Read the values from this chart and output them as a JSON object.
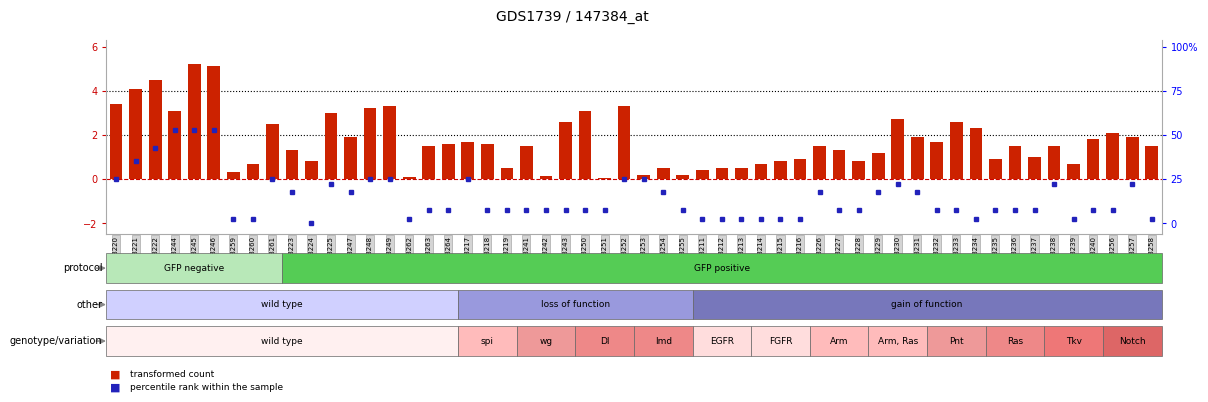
{
  "title": "GDS1739 / 147384_at",
  "samples": [
    "GSM88220",
    "GSM88221",
    "GSM88222",
    "GSM88244",
    "GSM88245",
    "GSM88246",
    "GSM88259",
    "GSM88260",
    "GSM88261",
    "GSM88223",
    "GSM88224",
    "GSM88225",
    "GSM88247",
    "GSM88248",
    "GSM88249",
    "GSM88262",
    "GSM88263",
    "GSM88264",
    "GSM88217",
    "GSM88218",
    "GSM88219",
    "GSM88241",
    "GSM88242",
    "GSM88243",
    "GSM88250",
    "GSM88251",
    "GSM88252",
    "GSM88253",
    "GSM88254",
    "GSM88255",
    "GSM88211",
    "GSM88212",
    "GSM88213",
    "GSM88214",
    "GSM88215",
    "GSM88216",
    "GSM88226",
    "GSM88227",
    "GSM88228",
    "GSM88229",
    "GSM88230",
    "GSM88231",
    "GSM88232",
    "GSM88233",
    "GSM88234",
    "GSM88235",
    "GSM88236",
    "GSM88237",
    "GSM88238",
    "GSM88239",
    "GSM88240",
    "GSM88256",
    "GSM88257",
    "GSM88258"
  ],
  "bar_values": [
    3.4,
    4.1,
    4.5,
    3.1,
    5.2,
    5.1,
    0.3,
    0.7,
    2.5,
    1.3,
    0.8,
    3.0,
    1.9,
    3.2,
    3.3,
    0.1,
    1.5,
    1.6,
    1.7,
    1.6,
    0.5,
    1.5,
    0.15,
    2.6,
    3.1,
    0.05,
    3.3,
    0.2,
    0.5,
    0.2,
    0.4,
    0.5,
    0.5,
    0.7,
    0.8,
    0.9,
    1.5,
    1.3,
    0.8,
    1.2,
    2.7,
    1.9,
    1.7,
    2.6,
    2.3,
    0.9,
    1.5,
    1.0,
    1.5,
    0.7,
    1.8,
    2.1,
    1.9,
    1.5
  ],
  "percentile_values": [
    0.0,
    0.8,
    1.4,
    2.2,
    2.2,
    2.2,
    -1.8,
    -1.8,
    0.0,
    -0.6,
    -2.0,
    -0.2,
    -0.6,
    0.0,
    0.0,
    -1.8,
    -1.4,
    -1.4,
    0.0,
    -1.4,
    -1.4,
    -1.4,
    -1.4,
    -1.4,
    -1.4,
    -1.4,
    0.0,
    0.0,
    -0.6,
    -1.4,
    -1.8,
    -1.8,
    -1.8,
    -1.8,
    -1.8,
    -1.8,
    -0.6,
    -1.4,
    -1.4,
    -0.6,
    -0.2,
    -0.6,
    -1.4,
    -1.4,
    -1.8,
    -1.4,
    -1.4,
    -1.4,
    -0.2,
    -1.8,
    -1.4,
    -1.4,
    -0.2,
    -1.8
  ],
  "protocol_groups": [
    {
      "label": "GFP negative",
      "start": 0,
      "end": 9,
      "color": "#b8e8b8"
    },
    {
      "label": "GFP positive",
      "start": 9,
      "end": 54,
      "color": "#55cc55"
    }
  ],
  "other_groups": [
    {
      "label": "wild type",
      "start": 0,
      "end": 18,
      "color": "#d0d0ff"
    },
    {
      "label": "loss of function",
      "start": 18,
      "end": 30,
      "color": "#9999dd"
    },
    {
      "label": "gain of function",
      "start": 30,
      "end": 54,
      "color": "#7777bb"
    }
  ],
  "genotype_groups": [
    {
      "label": "wild type",
      "start": 0,
      "end": 18,
      "color": "#fff0f0"
    },
    {
      "label": "spi",
      "start": 18,
      "end": 21,
      "color": "#ffbbbb"
    },
    {
      "label": "wg",
      "start": 21,
      "end": 24,
      "color": "#ee9999"
    },
    {
      "label": "Dl",
      "start": 24,
      "end": 27,
      "color": "#ee8888"
    },
    {
      "label": "lmd",
      "start": 27,
      "end": 30,
      "color": "#ee8888"
    },
    {
      "label": "EGFR",
      "start": 30,
      "end": 33,
      "color": "#ffdddd"
    },
    {
      "label": "FGFR",
      "start": 33,
      "end": 36,
      "color": "#ffdddd"
    },
    {
      "label": "Arm",
      "start": 36,
      "end": 39,
      "color": "#ffbbbb"
    },
    {
      "label": "Arm, Ras",
      "start": 39,
      "end": 42,
      "color": "#ffbbbb"
    },
    {
      "label": "Pnt",
      "start": 42,
      "end": 45,
      "color": "#ee9999"
    },
    {
      "label": "Ras",
      "start": 45,
      "end": 48,
      "color": "#ee8888"
    },
    {
      "label": "Tkv",
      "start": 48,
      "end": 51,
      "color": "#ee7777"
    },
    {
      "label": "Notch",
      "start": 51,
      "end": 54,
      "color": "#dd6666"
    }
  ],
  "ylim": [
    -2.5,
    6.3
  ],
  "yticks_left": [
    -2,
    0,
    2,
    4,
    6
  ],
  "right_tick_y": [
    -2.0,
    0.0,
    2.0,
    4.0,
    6.0
  ],
  "right_tick_labels": [
    "0",
    "25",
    "50",
    "75",
    "100%"
  ],
  "hlines": [
    2.0,
    4.0
  ],
  "zero_line_color": "#cc0000",
  "bar_color": "#cc2200",
  "dot_color": "#2222bb"
}
